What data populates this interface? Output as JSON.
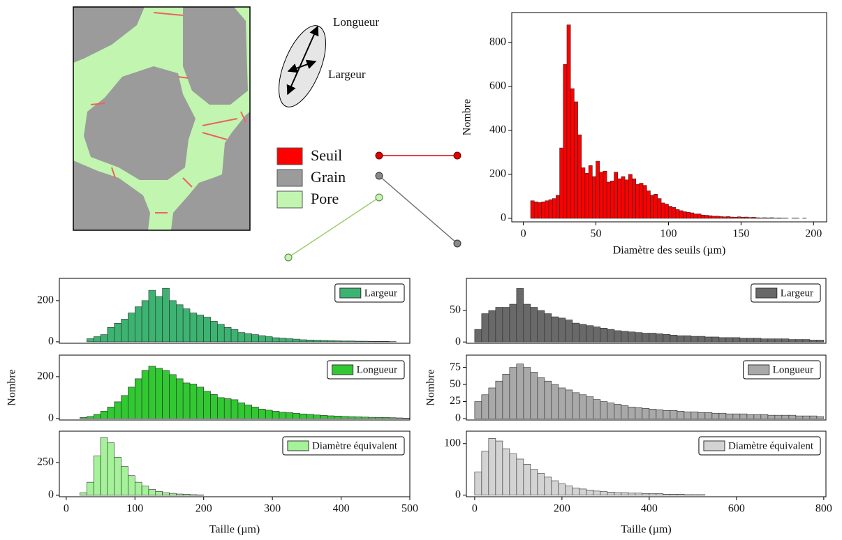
{
  "schematic": {
    "axis_labels": [
      "Longueur",
      "Largeur"
    ],
    "legend": [
      {
        "name": "Seuil",
        "color": "#ff0000"
      },
      {
        "name": "Grain",
        "color": "#9b9b9b"
      },
      {
        "name": "Pore",
        "color": "#c1f5b0"
      }
    ]
  },
  "chart_data": [
    {
      "type": "histogram",
      "xlabel": "Diamètre des seuils (µm)",
      "ylabel": "Nombre",
      "color": "#ff0000",
      "bins": [
        5,
        7.5,
        10,
        12.5,
        15,
        17.5,
        20,
        22.5,
        25,
        27.5,
        30,
        32.5,
        35,
        37.5,
        40,
        42.5,
        45,
        47.5,
        50,
        52.5,
        55,
        57.5,
        60,
        62.5,
        65,
        67.5,
        70,
        72.5,
        75,
        77.5,
        80,
        82.5,
        85,
        87.5,
        90,
        92.5,
        95,
        97.5,
        100,
        102.5,
        105,
        107.5,
        110,
        112.5,
        115,
        117.5,
        120,
        122.5,
        125,
        127.5,
        130,
        132.5,
        135,
        137.5,
        140,
        142.5,
        145,
        147.5,
        150,
        152.5,
        155,
        157.5,
        160,
        162.5,
        165,
        167.5,
        170,
        172.5,
        175,
        177.5,
        180,
        182.5,
        185,
        187.5,
        190,
        192.5,
        195
      ],
      "values": [
        80,
        75,
        72,
        75,
        80,
        85,
        90,
        105,
        320,
        700,
        880,
        590,
        530,
        380,
        230,
        205,
        240,
        190,
        260,
        210,
        215,
        165,
        170,
        210,
        180,
        190,
        175,
        200,
        180,
        155,
        160,
        150,
        125,
        105,
        110,
        90,
        70,
        65,
        55,
        50,
        40,
        35,
        30,
        28,
        25,
        20,
        20,
        15,
        14,
        12,
        10,
        10,
        8,
        7,
        8,
        6,
        5,
        7,
        5,
        6,
        4,
        5,
        3,
        2,
        3,
        2,
        3,
        1,
        2,
        1,
        1,
        0,
        1,
        1,
        0,
        1
      ],
      "xlim": [
        -8,
        209
      ],
      "ylim": [
        -16,
        936
      ],
      "xticks": [
        0,
        50,
        100,
        150,
        200
      ],
      "yticks": [
        0,
        200,
        400,
        600,
        800
      ]
    },
    {
      "type": "histogram",
      "series": [
        {
          "name": "Largeur",
          "color": "#3cb371",
          "values": [
            15,
            25,
            35,
            70,
            90,
            110,
            140,
            170,
            200,
            250,
            220,
            260,
            200,
            180,
            160,
            140,
            130,
            120,
            100,
            85,
            70,
            60,
            45,
            40,
            35,
            30,
            25,
            20,
            18,
            15,
            13,
            10,
            9,
            8,
            7,
            6,
            5,
            4,
            4,
            3,
            3,
            2,
            2,
            2,
            1
          ]
        }
      ],
      "bins": [
        30,
        40,
        50,
        60,
        70,
        80,
        90,
        100,
        110,
        120,
        130,
        140,
        150,
        160,
        170,
        180,
        190,
        200,
        210,
        220,
        230,
        240,
        250,
        260,
        270,
        280,
        290,
        300,
        310,
        320,
        330,
        340,
        350,
        360,
        370,
        380,
        390,
        400,
        410,
        420,
        430,
        440,
        450,
        460,
        470,
        480
      ],
      "xlim": [
        -10,
        500
      ],
      "ylim": [
        -7,
        308
      ],
      "yticks": [
        0,
        200
      ]
    },
    {
      "type": "histogram",
      "ylabel": "Nombre",
      "series": [
        {
          "name": "Longueur",
          "color": "#32c832",
          "values": [
            5,
            10,
            20,
            35,
            55,
            80,
            110,
            150,
            190,
            230,
            250,
            240,
            230,
            210,
            190,
            170,
            165,
            150,
            130,
            115,
            100,
            95,
            90,
            75,
            65,
            55,
            45,
            40,
            35,
            30,
            28,
            25,
            22,
            20,
            17,
            15,
            13,
            12,
            10,
            9,
            8,
            7,
            6,
            5,
            5,
            4,
            3,
            2
          ]
        }
      ],
      "bins": [
        20,
        30,
        40,
        50,
        60,
        70,
        80,
        90,
        100,
        110,
        120,
        130,
        140,
        150,
        160,
        170,
        180,
        190,
        200,
        210,
        220,
        230,
        240,
        250,
        260,
        270,
        280,
        290,
        300,
        310,
        320,
        330,
        340,
        350,
        360,
        370,
        380,
        390,
        400,
        410,
        420,
        430,
        440,
        450,
        460,
        470,
        480,
        490,
        500
      ],
      "xlim": [
        -10,
        500
      ],
      "ylim": [
        -7,
        303
      ],
      "yticks": [
        0,
        200
      ]
    },
    {
      "type": "histogram",
      "xlabel": "Taille (µm)",
      "series": [
        {
          "name": "Diamètre équivalent",
          "color": "#a6f29a",
          "values": [
            20,
            100,
            300,
            440,
            400,
            290,
            220,
            150,
            100,
            70,
            45,
            30,
            20,
            15,
            10,
            8,
            5,
            3
          ]
        }
      ],
      "bins": [
        20,
        30,
        40,
        50,
        60,
        70,
        80,
        90,
        100,
        110,
        120,
        130,
        140,
        150,
        160,
        170,
        180,
        190,
        200
      ],
      "xlim": [
        -10,
        500
      ],
      "ylim": [
        -11,
        489
      ],
      "xticks": [
        0,
        100,
        200,
        300,
        400,
        500
      ],
      "yticks": [
        0,
        250
      ]
    },
    {
      "type": "histogram",
      "series": [
        {
          "name": "Largeur",
          "color": "#696969",
          "values": [
            20,
            45,
            50,
            55,
            55,
            60,
            85,
            60,
            55,
            50,
            45,
            40,
            38,
            35,
            30,
            28,
            26,
            24,
            22,
            20,
            18,
            17,
            16,
            15,
            14,
            14,
            13,
            12,
            11,
            10,
            10,
            9,
            9,
            8,
            8,
            7,
            7,
            7,
            6,
            6,
            6,
            5,
            5,
            5,
            5,
            4,
            4,
            4,
            3,
            3
          ]
        }
      ],
      "bins": [
        0,
        16,
        32,
        48,
        64,
        80,
        96,
        112,
        128,
        144,
        160,
        176,
        192,
        208,
        224,
        240,
        256,
        272,
        288,
        304,
        320,
        336,
        352,
        368,
        384,
        400,
        416,
        432,
        448,
        464,
        480,
        496,
        512,
        528,
        544,
        560,
        576,
        592,
        608,
        624,
        640,
        656,
        672,
        688,
        704,
        720,
        736,
        752,
        768,
        784,
        800
      ],
      "xlim": [
        -19,
        805
      ],
      "ylim": [
        -2,
        101
      ],
      "yticks": [
        0,
        50
      ]
    },
    {
      "type": "histogram",
      "ylabel": "Nombre",
      "series": [
        {
          "name": "Longueur",
          "color": "#a9a9a9",
          "values": [
            25,
            35,
            45,
            55,
            65,
            75,
            80,
            75,
            68,
            60,
            55,
            50,
            45,
            42,
            38,
            35,
            32,
            28,
            25,
            23,
            21,
            19,
            17,
            16,
            15,
            14,
            13,
            12,
            12,
            11,
            10,
            10,
            9,
            9,
            8,
            8,
            7,
            7,
            7,
            6,
            6,
            6,
            5,
            5,
            5,
            5,
            4,
            4,
            4,
            3
          ]
        }
      ],
      "bins": [
        0,
        16,
        32,
        48,
        64,
        80,
        96,
        112,
        128,
        144,
        160,
        176,
        192,
        208,
        224,
        240,
        256,
        272,
        288,
        304,
        320,
        336,
        352,
        368,
        384,
        400,
        416,
        432,
        448,
        464,
        480,
        496,
        512,
        528,
        544,
        560,
        576,
        592,
        608,
        624,
        640,
        656,
        672,
        688,
        704,
        720,
        736,
        752,
        768,
        784,
        800
      ],
      "xlim": [
        -19,
        805
      ],
      "ylim": [
        -2,
        93
      ],
      "yticks": [
        0,
        25,
        50,
        75
      ]
    },
    {
      "type": "histogram",
      "xlabel": "Taille (µm)",
      "series": [
        {
          "name": "Diamètre équivalent",
          "color": "#d3d3d3",
          "values": [
            45,
            85,
            110,
            105,
            90,
            80,
            70,
            60,
            50,
            42,
            35,
            28,
            22,
            18,
            14,
            12,
            10,
            8,
            7,
            6,
            5,
            5,
            4,
            4,
            3,
            3,
            3,
            2,
            2,
            2,
            1,
            1,
            1
          ]
        }
      ],
      "bins": [
        0,
        16,
        32,
        48,
        64,
        80,
        96,
        112,
        128,
        144,
        160,
        176,
        192,
        208,
        224,
        240,
        256,
        272,
        288,
        304,
        320,
        336,
        352,
        368,
        384,
        400,
        416,
        432,
        448,
        464,
        480,
        496,
        512,
        528
      ],
      "xlim": [
        -19,
        805
      ],
      "ylim": [
        -3,
        124
      ],
      "xticks": [
        0,
        200,
        400,
        600,
        800
      ],
      "yticks": [
        0,
        100
      ]
    }
  ]
}
